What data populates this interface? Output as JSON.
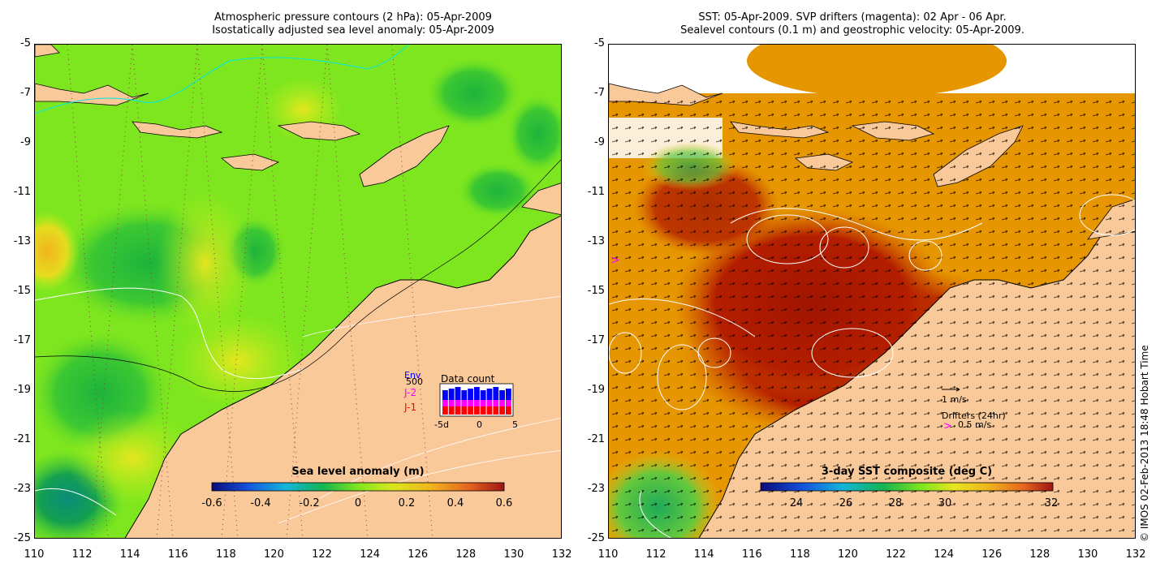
{
  "left_map": {
    "title_line1": "Atmospheric pressure contours (2 hPa): 05-Apr-2009",
    "title_line2": "Isostatically adjusted sea level anomaly: 05-Apr-2009",
    "colorbar_title": "Sea level anomaly (m)",
    "colorbar_ticks": [
      "-0.6",
      "-0.4",
      "-0.2",
      "0",
      "0.2",
      "0.4",
      "0.6"
    ],
    "inset": {
      "title": "Data count",
      "legend": [
        {
          "label": "Env",
          "color": "#0000ff"
        },
        {
          "label": "500",
          "color": "#000000"
        },
        {
          "label": "J-2",
          "color": "#ff00ff"
        },
        {
          "label": "J-1",
          "color": "#ff0000"
        }
      ],
      "x_ticks": [
        "-5d",
        "0",
        "5"
      ]
    }
  },
  "right_map": {
    "title_line1": "SST: 05-Apr-2009. SVP drifters (magenta): 02 Apr - 06 Apr.",
    "title_line2": "Sealevel contours (0.1 m) and geostrophic velocity: 05-Apr-2009.",
    "colorbar_title": "3-day SST composite (deg C)",
    "colorbar_ticks": [
      "24",
      "26",
      "28",
      "30",
      "32"
    ],
    "velocity_legend": "1 m/s",
    "drifter_legend_title": "Drifters (24hr)",
    "drifter_legend_value": "0.5 m/s",
    "drifter_symbol": ">",
    "drifter_color": "#ff00ff"
  },
  "y_ticks": [
    "-5",
    "-7",
    "-9",
    "-11",
    "-13",
    "-15",
    "-17",
    "-19",
    "-21",
    "-23",
    "-25"
  ],
  "x_ticks": [
    "110",
    "112",
    "114",
    "116",
    "118",
    "120",
    "122",
    "124",
    "126",
    "128",
    "130",
    "132"
  ],
  "copyright": "© IMOS 02-Feb-2013 18:48 Hobart Time",
  "colors": {
    "land": "#fac99a",
    "sla_main": "#7ee61e",
    "sst_main": "#e69600",
    "sst_hot": "#b41e00"
  }
}
